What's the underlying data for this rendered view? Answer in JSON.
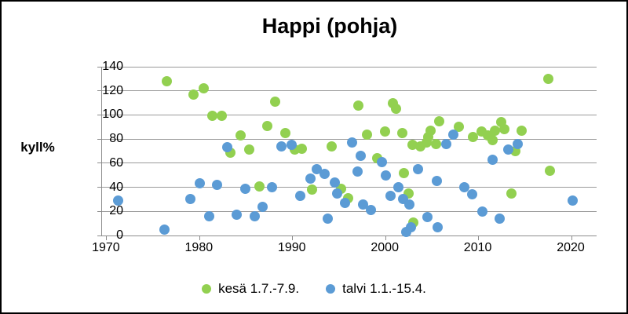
{
  "title": "Happi (pohja)",
  "y_axis": {
    "label": "kyll%"
  },
  "legend": {
    "items": [
      {
        "label": "kesä 1.7.-7.9.",
        "color": "#92D050"
      },
      {
        "label": "talvi 1.1.-15.4.",
        "color": "#5B9BD5"
      }
    ]
  },
  "chart_data": {
    "type": "scatter",
    "title": "Happi (pohja)",
    "xlabel": "",
    "ylabel": "kyll%",
    "xlim": [
      1969.5,
      2022.7
    ],
    "ylim": [
      0,
      140
    ],
    "x_ticks": [
      1970,
      1980,
      1990,
      2000,
      2010,
      2020
    ],
    "y_ticks": [
      0,
      20,
      40,
      60,
      80,
      100,
      120,
      140
    ],
    "grid": true,
    "legend_position": "bottom",
    "marker_diameter_px": 13,
    "series": [
      {
        "name": "kesä 1.7.-7.9.",
        "color": "#92D050",
        "points": [
          [
            1976.5,
            128
          ],
          [
            1979.3,
            117
          ],
          [
            1980.4,
            122
          ],
          [
            1981.4,
            99
          ],
          [
            1982.4,
            99
          ],
          [
            1983.3,
            69
          ],
          [
            1984.4,
            83
          ],
          [
            1985.3,
            71
          ],
          [
            1986.4,
            41
          ],
          [
            1987.3,
            91
          ],
          [
            1988.1,
            111
          ],
          [
            1989.2,
            85
          ],
          [
            1990.2,
            71
          ],
          [
            1991.0,
            72
          ],
          [
            1992.1,
            38
          ],
          [
            1994.2,
            74
          ],
          [
            1995.2,
            39
          ],
          [
            1996.0,
            31
          ],
          [
            1997.1,
            108
          ],
          [
            1998.0,
            84
          ],
          [
            1999.1,
            64
          ],
          [
            1999.9,
            86
          ],
          [
            2000.8,
            110
          ],
          [
            2001.1,
            105
          ],
          [
            2001.8,
            85
          ],
          [
            2002.0,
            52
          ],
          [
            2002.5,
            35
          ],
          [
            2002.9,
            75
          ],
          [
            2003.0,
            11
          ],
          [
            2003.7,
            74
          ],
          [
            2004.4,
            77
          ],
          [
            2004.6,
            82
          ],
          [
            2004.8,
            87
          ],
          [
            2005.4,
            76
          ],
          [
            2005.8,
            95
          ],
          [
            2007.9,
            90
          ],
          [
            2009.4,
            82
          ],
          [
            2010.3,
            86
          ],
          [
            2011.0,
            83
          ],
          [
            2011.5,
            79
          ],
          [
            2011.8,
            87
          ],
          [
            2012.4,
            94
          ],
          [
            2012.8,
            88
          ],
          [
            2013.5,
            35
          ],
          [
            2014.0,
            70
          ],
          [
            2014.6,
            87
          ],
          [
            2017.5,
            130
          ],
          [
            2017.7,
            54
          ]
        ]
      },
      {
        "name": "talvi 1.1.-15.4.",
        "color": "#5B9BD5",
        "points": [
          [
            1971.2,
            29
          ],
          [
            1976.2,
            5
          ],
          [
            1979.0,
            30
          ],
          [
            1980.0,
            43
          ],
          [
            1981.0,
            16
          ],
          [
            1981.9,
            42
          ],
          [
            1983.0,
            73
          ],
          [
            1984.0,
            17
          ],
          [
            1984.9,
            39
          ],
          [
            1985.9,
            16
          ],
          [
            1986.8,
            24
          ],
          [
            1987.8,
            40
          ],
          [
            1988.8,
            74
          ],
          [
            1989.9,
            75
          ],
          [
            1990.8,
            33
          ],
          [
            1991.9,
            47
          ],
          [
            1992.6,
            55
          ],
          [
            1993.4,
            51
          ],
          [
            1993.8,
            14
          ],
          [
            1994.5,
            44
          ],
          [
            1994.8,
            35
          ],
          [
            1995.6,
            27
          ],
          [
            1996.4,
            77
          ],
          [
            1997.0,
            53
          ],
          [
            1997.3,
            66
          ],
          [
            1997.6,
            26
          ],
          [
            1998.4,
            21
          ],
          [
            1999.6,
            61
          ],
          [
            2000.0,
            50
          ],
          [
            2000.5,
            33
          ],
          [
            2001.4,
            40
          ],
          [
            2001.9,
            30
          ],
          [
            2002.2,
            3
          ],
          [
            2002.6,
            26
          ],
          [
            2002.7,
            7
          ],
          [
            2003.5,
            55
          ],
          [
            2004.5,
            15
          ],
          [
            2005.5,
            45
          ],
          [
            2005.6,
            7
          ],
          [
            2006.5,
            76
          ],
          [
            2007.3,
            84
          ],
          [
            2008.5,
            40
          ],
          [
            2009.3,
            34
          ],
          [
            2010.4,
            20
          ],
          [
            2011.5,
            63
          ],
          [
            2012.3,
            14
          ],
          [
            2013.2,
            71
          ],
          [
            2014.2,
            76
          ],
          [
            2020.1,
            29
          ]
        ]
      }
    ]
  }
}
